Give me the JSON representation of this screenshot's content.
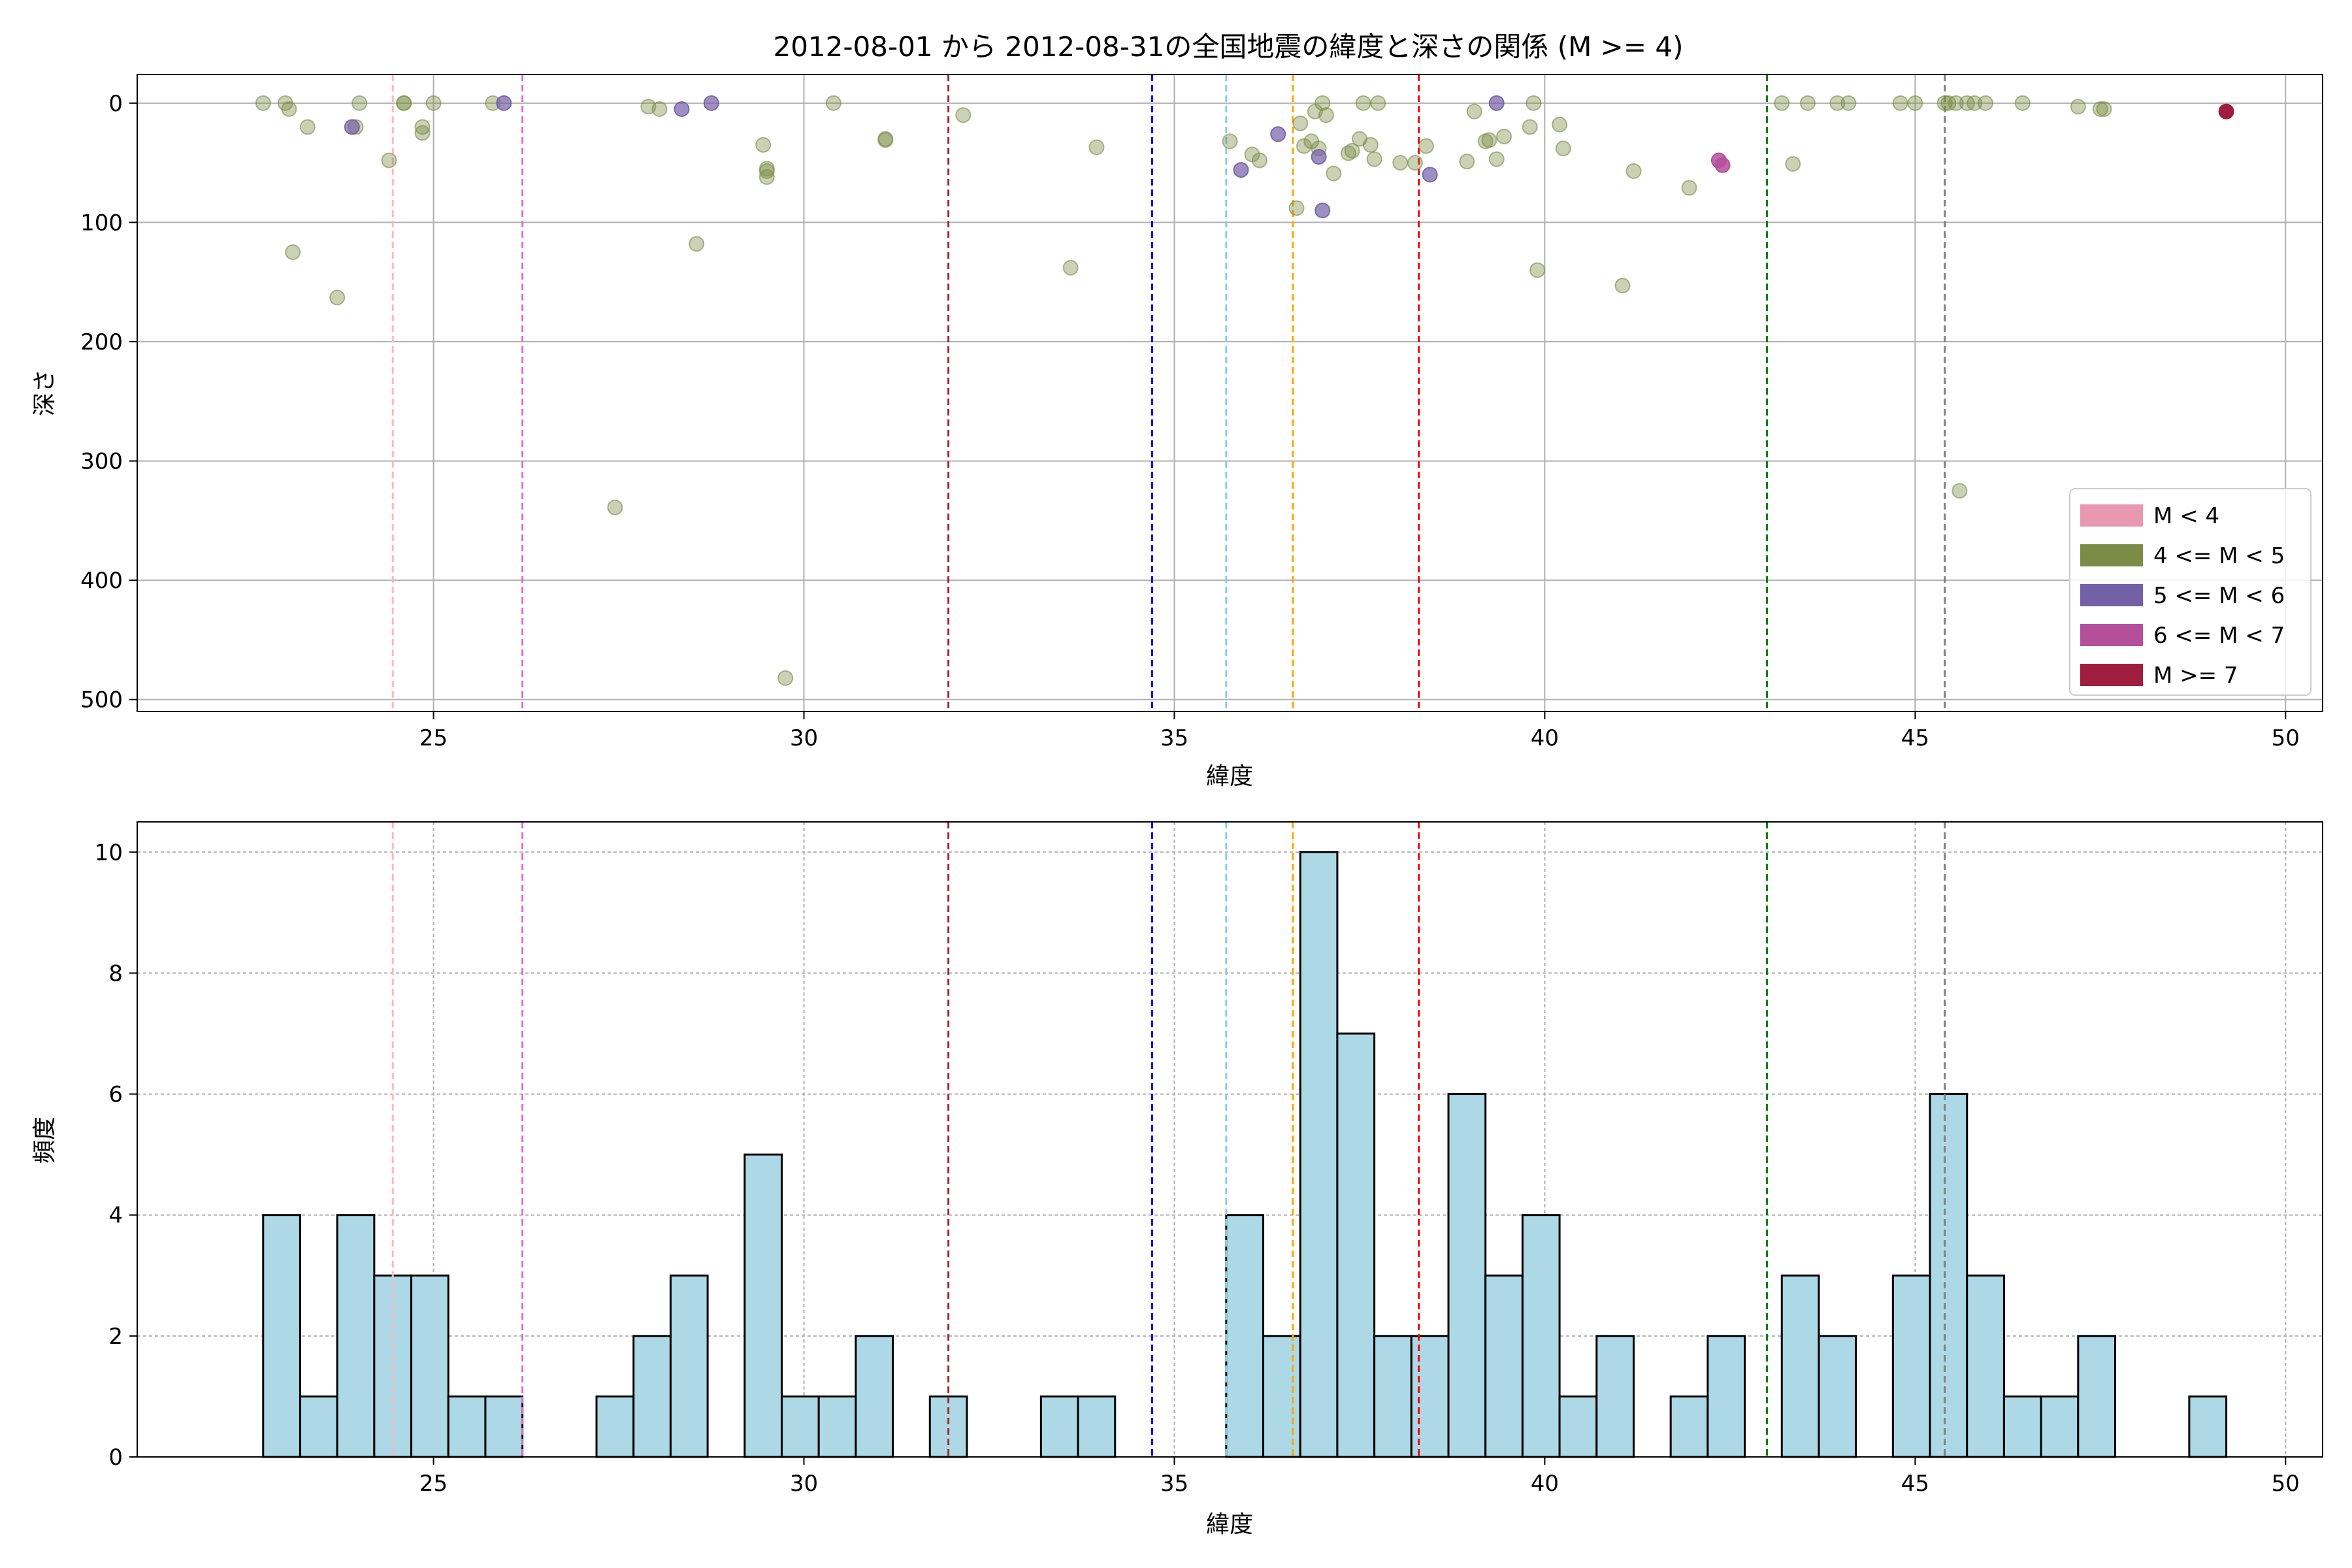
{
  "chart_data": [
    {
      "type": "scatter",
      "title": "2012-08-01 から 2012-08-31の全国地震の緯度と深さの関係 (M >= 4)",
      "xlabel": "緯度",
      "ylabel": "深さ",
      "xlim": [
        21,
        50.5
      ],
      "ylim": [
        510,
        -24
      ],
      "y_inverted": true,
      "grid": true,
      "xticks": [
        25,
        30,
        35,
        40,
        45,
        50
      ],
      "yticks": [
        0,
        100,
        200,
        300,
        400,
        500
      ],
      "legend_position": "lower-right",
      "legend": [
        {
          "label": "M < 4",
          "color": "#e899b1"
        },
        {
          "label": "4 <= M < 5",
          "color": "#7b8c46"
        },
        {
          "label": "5 <= M < 6",
          "color": "#7360a6"
        },
        {
          "label": "6 <= M < 7",
          "color": "#b44f9b"
        },
        {
          "label": "M >= 7",
          "color": "#9f1d3e"
        }
      ],
      "vlines": [
        {
          "x": 24.45,
          "color": "#ffb6c1"
        },
        {
          "x": 26.2,
          "color": "#da70d6"
        },
        {
          "x": 31.95,
          "color": "#a52a2a"
        },
        {
          "x": 34.7,
          "color": "#0000ff"
        },
        {
          "x": 35.7,
          "color": "#87ceeb"
        },
        {
          "x": 36.6,
          "color": "#ffa500"
        },
        {
          "x": 38.3,
          "color": "#ff0000"
        },
        {
          "x": 43.0,
          "color": "#008000"
        },
        {
          "x": 45.4,
          "color": "#808080"
        }
      ],
      "series": [
        {
          "color": "#7b8c46",
          "alpha": 0.4,
          "points": [
            [
              22.7,
              0
            ],
            [
              23.0,
              0
            ],
            [
              23.05,
              5
            ],
            [
              23.3,
              20
            ],
            [
              23.1,
              125
            ],
            [
              23.7,
              163
            ],
            [
              23.95,
              20
            ],
            [
              24.0,
              0
            ],
            [
              24.4,
              48
            ],
            [
              24.6,
              0
            ],
            [
              24.6,
              0
            ],
            [
              24.85,
              20
            ],
            [
              24.85,
              25
            ],
            [
              25.0,
              0
            ],
            [
              25.8,
              0
            ],
            [
              27.45,
              339
            ],
            [
              27.9,
              3
            ],
            [
              28.05,
              5
            ],
            [
              28.55,
              118
            ],
            [
              29.45,
              35
            ],
            [
              29.5,
              55
            ],
            [
              29.5,
              57
            ],
            [
              29.5,
              62
            ],
            [
              29.75,
              482
            ],
            [
              30.4,
              0
            ],
            [
              31.1,
              30
            ],
            [
              31.1,
              31
            ],
            [
              32.15,
              10
            ],
            [
              33.6,
              138
            ],
            [
              33.95,
              37
            ],
            [
              35.75,
              32
            ],
            [
              36.05,
              43
            ],
            [
              36.15,
              48
            ],
            [
              36.65,
              88
            ],
            [
              36.7,
              17
            ],
            [
              36.75,
              36
            ],
            [
              36.85,
              32
            ],
            [
              36.9,
              7
            ],
            [
              36.95,
              38
            ],
            [
              37.0,
              0
            ],
            [
              37.05,
              10
            ],
            [
              37.15,
              59
            ],
            [
              37.35,
              42
            ],
            [
              37.4,
              40
            ],
            [
              37.5,
              30
            ],
            [
              37.55,
              0
            ],
            [
              37.65,
              35
            ],
            [
              37.7,
              47
            ],
            [
              37.75,
              0
            ],
            [
              38.05,
              50
            ],
            [
              38.25,
              50
            ],
            [
              38.4,
              36
            ],
            [
              38.95,
              49
            ],
            [
              39.05,
              7
            ],
            [
              39.2,
              32
            ],
            [
              39.25,
              31
            ],
            [
              39.35,
              47
            ],
            [
              39.45,
              28
            ],
            [
              39.8,
              20
            ],
            [
              39.85,
              0
            ],
            [
              39.9,
              140
            ],
            [
              40.2,
              18
            ],
            [
              40.25,
              38
            ],
            [
              41.05,
              153
            ],
            [
              41.2,
              57
            ],
            [
              41.95,
              71
            ],
            [
              43.2,
              0
            ],
            [
              43.35,
              51
            ],
            [
              43.55,
              0
            ],
            [
              43.95,
              0
            ],
            [
              44.1,
              0
            ],
            [
              44.8,
              0
            ],
            [
              45.0,
              0
            ],
            [
              45.4,
              0
            ],
            [
              45.45,
              0
            ],
            [
              45.55,
              0
            ],
            [
              45.6,
              325
            ],
            [
              45.7,
              0
            ],
            [
              45.8,
              0
            ],
            [
              45.95,
              0
            ],
            [
              46.45,
              0
            ],
            [
              47.2,
              3
            ],
            [
              47.5,
              5
            ],
            [
              47.55,
              5
            ]
          ]
        },
        {
          "color": "#7360a6",
          "alpha": 0.7,
          "points": [
            [
              23.9,
              20
            ],
            [
              25.95,
              0
            ],
            [
              28.35,
              5
            ],
            [
              28.75,
              0
            ],
            [
              35.9,
              56
            ],
            [
              36.4,
              26
            ],
            [
              36.95,
              45
            ],
            [
              37.0,
              90
            ],
            [
              38.45,
              60
            ],
            [
              39.35,
              0
            ]
          ]
        },
        {
          "color": "#b44f9b",
          "alpha": 0.85,
          "points": [
            [
              42.35,
              48
            ],
            [
              42.4,
              52
            ]
          ]
        },
        {
          "color": "#9f1d3e",
          "alpha": 1,
          "points": [
            [
              49.2,
              7
            ]
          ]
        }
      ]
    },
    {
      "type": "bar",
      "xlabel": "緯度",
      "ylabel": "頻度",
      "xlim": [
        21,
        50.5
      ],
      "ylim": [
        0,
        10.5
      ],
      "grid": true,
      "xticks": [
        25,
        30,
        35,
        40,
        45,
        50
      ],
      "yticks": [
        0,
        2,
        4,
        6,
        8,
        10
      ],
      "bar_color": "#add8e6",
      "bin_start": 22.7,
      "bin_width": 0.5,
      "counts": [
        4,
        1,
        4,
        3,
        3,
        1,
        1,
        0,
        0,
        1,
        2,
        3,
        0,
        5,
        1,
        1,
        2,
        0,
        1,
        0,
        0,
        1,
        1,
        0,
        0,
        0,
        4,
        2,
        10,
        7,
        2,
        2,
        6,
        3,
        4,
        1,
        2,
        0,
        1,
        2,
        0,
        3,
        2,
        0,
        3,
        6,
        3,
        1,
        1,
        2,
        0,
        0,
        1
      ],
      "vlines": [
        {
          "x": 24.45,
          "color": "#ffb6c1"
        },
        {
          "x": 26.2,
          "color": "#da70d6"
        },
        {
          "x": 31.95,
          "color": "#a52a2a"
        },
        {
          "x": 34.7,
          "color": "#0000ff"
        },
        {
          "x": 35.7,
          "color": "#87ceeb"
        },
        {
          "x": 36.6,
          "color": "#ffa500"
        },
        {
          "x": 38.3,
          "color": "#ff0000"
        },
        {
          "x": 43.0,
          "color": "#008000"
        },
        {
          "x": 45.4,
          "color": "#808080"
        }
      ]
    }
  ]
}
